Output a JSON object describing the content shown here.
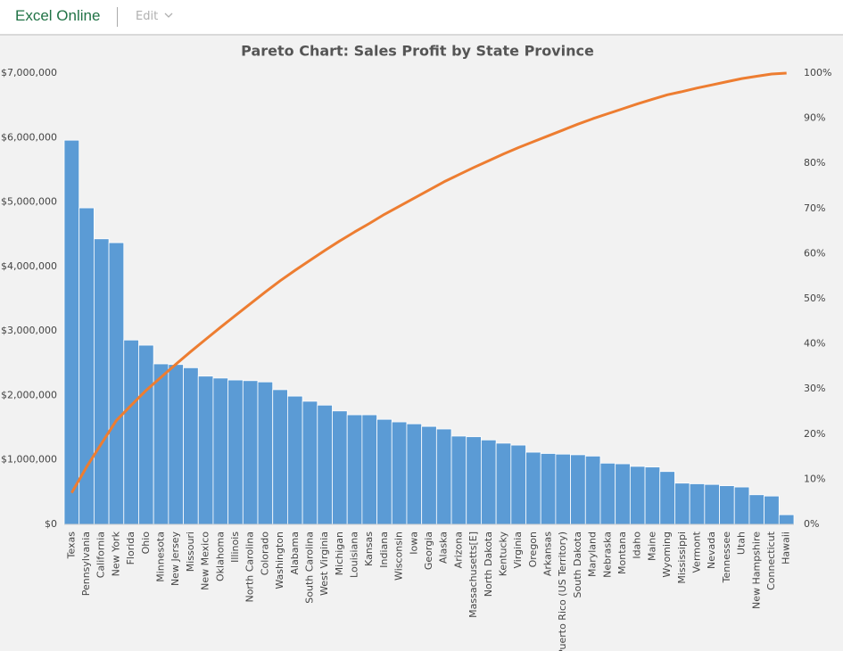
{
  "header": {
    "app": "Excel Online",
    "menu": "Edit"
  },
  "chart_data": {
    "type": "bar",
    "title": "Pareto Chart: Sales Profit by State Province",
    "categories": [
      "Texas",
      "Pennsylvania",
      "California",
      "New York",
      "Florida",
      "Ohio",
      "Minnesota",
      "New Jersey",
      "Missouri",
      "New Mexico",
      "Oklahoma",
      "Illinois",
      "North Carolina",
      "Colorado",
      "Washington",
      "Alabama",
      "South Carolina",
      "West Virginia",
      "Michigan",
      "Louisiana",
      "Kansas",
      "Indiana",
      "Wisconsin",
      "Iowa",
      "Georgia",
      "Alaska",
      "Arizona",
      "Massachusetts[E]",
      "North Dakota",
      "Kentucky",
      "Virginia",
      "Oregon",
      "Arkansas",
      "Puerto Rico (US Territory)",
      "South Dakota",
      "Maryland",
      "Nebraska",
      "Montana",
      "Idaho",
      "Maine",
      "Wyoming",
      "Mississippi",
      "Vermont",
      "Nevada",
      "Tennessee",
      "Utah",
      "New Hampshire",
      "Connecticut",
      "Hawaii"
    ],
    "series": [
      {
        "type": "bar",
        "color": "#5b9bd5",
        "values": [
          5960000,
          4910000,
          4430000,
          4370000,
          2860000,
          2780000,
          2490000,
          2480000,
          2430000,
          2300000,
          2270000,
          2240000,
          2230000,
          2210000,
          2090000,
          1990000,
          1910000,
          1850000,
          1760000,
          1700000,
          1700000,
          1630000,
          1590000,
          1560000,
          1520000,
          1480000,
          1370000,
          1360000,
          1310000,
          1260000,
          1230000,
          1120000,
          1100000,
          1090000,
          1080000,
          1060000,
          950000,
          940000,
          900000,
          890000,
          820000,
          640000,
          630000,
          620000,
          600000,
          580000,
          460000,
          440000,
          150000
        ]
      },
      {
        "type": "line",
        "axis": "y2",
        "color": "#ed7d31",
        "values": [
          7.0,
          12.7,
          17.9,
          23.0,
          26.4,
          29.7,
          32.6,
          35.5,
          38.3,
          41.0,
          43.7,
          46.3,
          48.9,
          51.5,
          54.0,
          56.3,
          58.5,
          60.7,
          62.8,
          64.8,
          66.7,
          68.7,
          70.5,
          72.3,
          74.1,
          75.9,
          77.5,
          79.1,
          80.6,
          82.1,
          83.5,
          84.8,
          86.1,
          87.4,
          88.7,
          89.9,
          91.0,
          92.1,
          93.2,
          94.2,
          95.2,
          95.9,
          96.7,
          97.4,
          98.1,
          98.8,
          99.3,
          99.8,
          100
        ]
      }
    ],
    "ylim": [
      0,
      7000000
    ],
    "yticks": [
      {
        "value": 0,
        "label": "$0"
      },
      {
        "value": 1000000,
        "label": "$1,000,000"
      },
      {
        "value": 2000000,
        "label": "$2,000,000"
      },
      {
        "value": 3000000,
        "label": "$3,000,000"
      },
      {
        "value": 4000000,
        "label": "$4,000,000"
      },
      {
        "value": 5000000,
        "label": "$5,000,000"
      },
      {
        "value": 6000000,
        "label": "$6,000,000"
      },
      {
        "value": 7000000,
        "label": "$7,000,000"
      }
    ],
    "y2lim": [
      0,
      100
    ],
    "y2ticks": [
      {
        "value": 0,
        "label": "0%"
      },
      {
        "value": 10,
        "label": "10%"
      },
      {
        "value": 20,
        "label": "20%"
      },
      {
        "value": 30,
        "label": "30%"
      },
      {
        "value": 40,
        "label": "40%"
      },
      {
        "value": 50,
        "label": "50%"
      },
      {
        "value": 60,
        "label": "60%"
      },
      {
        "value": 70,
        "label": "70%"
      },
      {
        "value": 80,
        "label": "80%"
      },
      {
        "value": 90,
        "label": "90%"
      },
      {
        "value": 100,
        "label": "100%"
      }
    ],
    "grid": false
  }
}
